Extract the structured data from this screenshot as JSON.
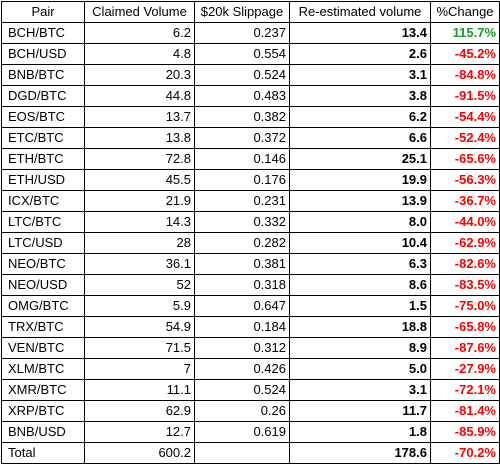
{
  "headers": [
    "Pair",
    "Claimed Volume",
    "$20k Slippage",
    "Re-estimated volume",
    "%Change"
  ],
  "rows": [
    {
      "pair": "BCH/BTC",
      "claimed": "6.2",
      "slippage": "0.237",
      "reestimated": "13.4",
      "change": "115.7%",
      "positive": true
    },
    {
      "pair": "BCH/USD",
      "claimed": "4.8",
      "slippage": "0.554",
      "reestimated": "2.6",
      "change": "-45.2%",
      "positive": false
    },
    {
      "pair": "BNB/BTC",
      "claimed": "20.3",
      "slippage": "0.524",
      "reestimated": "3.1",
      "change": "-84.8%",
      "positive": false
    },
    {
      "pair": "DGD/BTC",
      "claimed": "44.8",
      "slippage": "0.483",
      "reestimated": "3.8",
      "change": "-91.5%",
      "positive": false
    },
    {
      "pair": "EOS/BTC",
      "claimed": "13.7",
      "slippage": "0.382",
      "reestimated": "6.2",
      "change": "-54.4%",
      "positive": false
    },
    {
      "pair": "ETC/BTC",
      "claimed": "13.8",
      "slippage": "0.372",
      "reestimated": "6.6",
      "change": "-52.4%",
      "positive": false
    },
    {
      "pair": "ETH/BTC",
      "claimed": "72.8",
      "slippage": "0.146",
      "reestimated": "25.1",
      "change": "-65.6%",
      "positive": false
    },
    {
      "pair": "ETH/USD",
      "claimed": "45.5",
      "slippage": "0.176",
      "reestimated": "19.9",
      "change": "-56.3%",
      "positive": false
    },
    {
      "pair": "ICX/BTC",
      "claimed": "21.9",
      "slippage": "0.231",
      "reestimated": "13.9",
      "change": "-36.7%",
      "positive": false
    },
    {
      "pair": "LTC/BTC",
      "claimed": "14.3",
      "slippage": "0.332",
      "reestimated": "8.0",
      "change": "-44.0%",
      "positive": false
    },
    {
      "pair": "LTC/USD",
      "claimed": "28",
      "slippage": "0.282",
      "reestimated": "10.4",
      "change": "-62.9%",
      "positive": false
    },
    {
      "pair": "NEO/BTC",
      "claimed": "36.1",
      "slippage": "0.381",
      "reestimated": "6.3",
      "change": "-82.6%",
      "positive": false
    },
    {
      "pair": "NEO/USD",
      "claimed": "52",
      "slippage": "0.318",
      "reestimated": "8.6",
      "change": "-83.5%",
      "positive": false
    },
    {
      "pair": "OMG/BTC",
      "claimed": "5.9",
      "slippage": "0.647",
      "reestimated": "1.5",
      "change": "-75.0%",
      "positive": false
    },
    {
      "pair": "TRX/BTC",
      "claimed": "54.9",
      "slippage": "0.184",
      "reestimated": "18.8",
      "change": "-65.8%",
      "positive": false
    },
    {
      "pair": "VEN/BTC",
      "claimed": "71.5",
      "slippage": "0.312",
      "reestimated": "8.9",
      "change": "-87.6%",
      "positive": false
    },
    {
      "pair": "XLM/BTC",
      "claimed": "7",
      "slippage": "0.426",
      "reestimated": "5.0",
      "change": "-27.9%",
      "positive": false
    },
    {
      "pair": "XMR/BTC",
      "claimed": "11.1",
      "slippage": "0.524",
      "reestimated": "3.1",
      "change": "-72.1%",
      "positive": false
    },
    {
      "pair": "XRP/BTC",
      "claimed": "62.9",
      "slippage": "0.26",
      "reestimated": "11.7",
      "change": "-81.4%",
      "positive": false
    },
    {
      "pair": "BNB/USD",
      "claimed": "12.7",
      "slippage": "0.619",
      "reestimated": "1.8",
      "change": "-85.9%",
      "positive": false
    }
  ],
  "total": {
    "label": "Total",
    "claimed": "600.2",
    "slippage": "",
    "reestimated": "178.6",
    "change": "-70.2%",
    "positive": false
  }
}
